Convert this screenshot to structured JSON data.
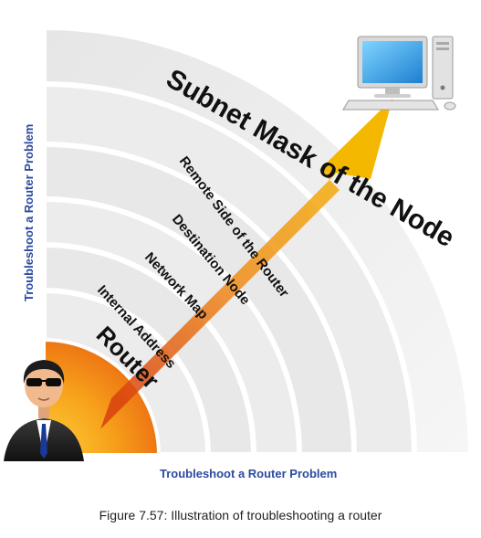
{
  "labels": {
    "router": "Router",
    "internal_address": "Internal Address",
    "network_map": "Network Map",
    "destination_node": "Destination Node",
    "remote_side": "Remote Side of the Router",
    "subnet_mask": "Subnet Mask of the Node"
  },
  "axis": {
    "bottom": "Troubleshoot a Router Problem",
    "left": "Troubleshoot a Router Problem"
  },
  "caption": "Figure 7.57: Illustration of troubleshooting a router",
  "icons": [
    "person-with-sunglasses-icon",
    "desktop-computer-icon"
  ],
  "colors": {
    "core_orange": "#f08a1a",
    "arrow_yellow": "#f5b800",
    "arrow_red": "#d8400e",
    "axis_blue": "#2b4aa0"
  }
}
